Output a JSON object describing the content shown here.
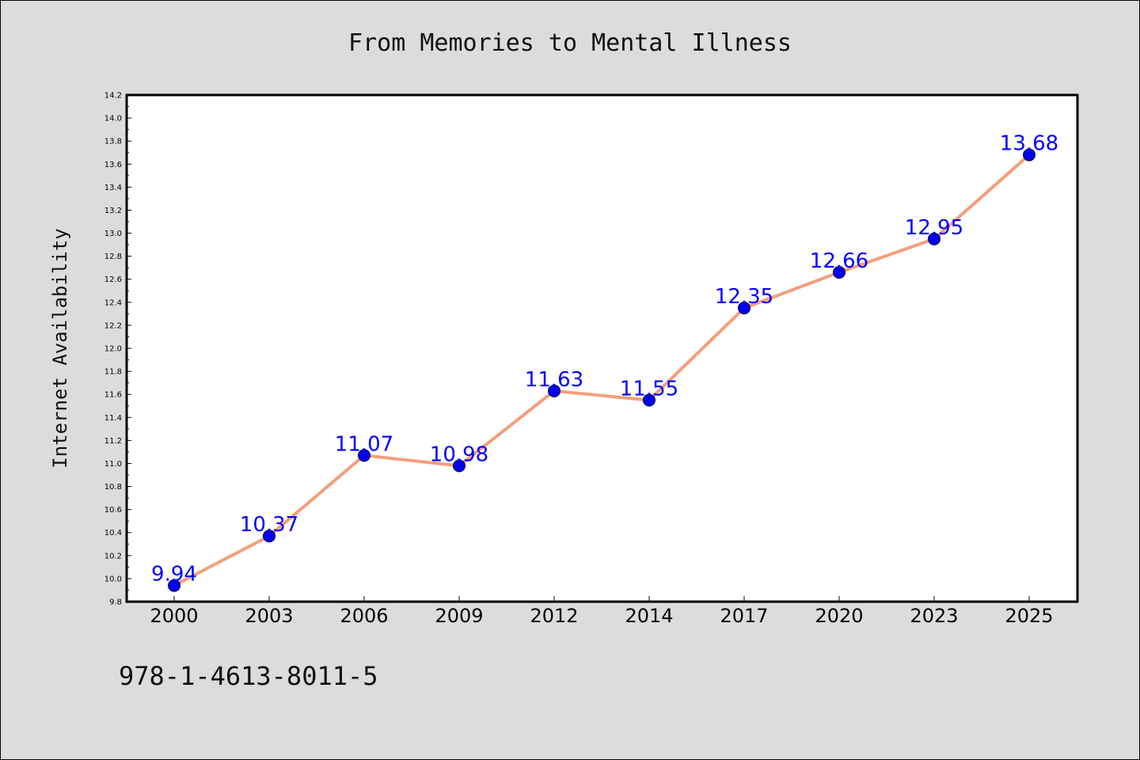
{
  "chart_data": {
    "type": "line",
    "title": "From Memories to Mental Illness",
    "xlabel": "",
    "ylabel": "Internet Availability",
    "categories": [
      "2000",
      "2003",
      "2006",
      "2009",
      "2012",
      "2014",
      "2017",
      "2020",
      "2023",
      "2025"
    ],
    "series": [
      {
        "values": [
          9.94,
          10.37,
          11.07,
          10.98,
          11.63,
          11.55,
          12.35,
          12.66,
          12.95,
          13.68
        ],
        "data_labels": [
          "9.94",
          "10.37",
          "11.07",
          "10.98",
          "11.63",
          "11.55",
          "12.35",
          "12.66",
          "12.95",
          "13.68"
        ]
      }
    ],
    "ylim": [
      9.8,
      14.2
    ],
    "yticks": [
      "9.8",
      "10.0",
      "10.2",
      "10.4",
      "10.6",
      "10.8",
      "11.0",
      "11.2",
      "11.4",
      "11.6",
      "11.8",
      "12.0",
      "12.2",
      "12.4",
      "12.6",
      "12.8",
      "13.0",
      "13.2",
      "13.4",
      "13.6",
      "13.8",
      "14.0",
      "14.2"
    ],
    "grid": false,
    "legend": "none",
    "colors": {
      "line": "#f59e7c",
      "marker_fill": "#0000ee",
      "marker_stroke": "#000033",
      "data_label": "#0000ff",
      "background": "#dcdcdc",
      "plot_area": "#ffffff"
    }
  },
  "footer": {
    "isbn": "978-1-4613-8011-5"
  }
}
